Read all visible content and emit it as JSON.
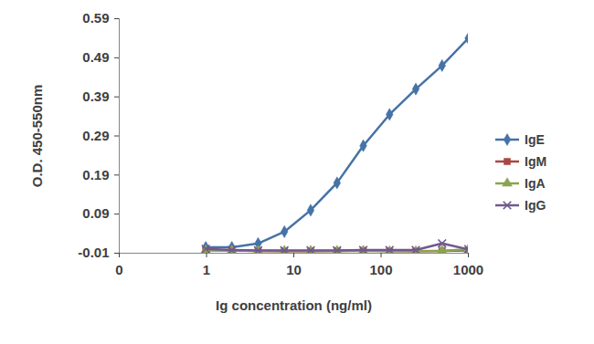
{
  "chart_data": {
    "type": "line",
    "x_label": "Ig concentration (ng/ml)",
    "y_label": "O.D. 450-550nm",
    "x": [
      0.98,
      1.95,
      3.9,
      7.8,
      15.6,
      31.3,
      62.5,
      125,
      250,
      500,
      1000
    ],
    "series": [
      {
        "name": "IgE",
        "color": "#4572a7",
        "marker": "diamond",
        "values": [
          0.005,
          0.005,
          0.015,
          0.045,
          0.1,
          0.17,
          0.265,
          0.345,
          0.41,
          0.47,
          0.54
        ]
      },
      {
        "name": "IgM",
        "color": "#aa4643",
        "marker": "square",
        "values": [
          -0.002,
          -0.003,
          -0.004,
          -0.005,
          -0.005,
          -0.004,
          -0.003,
          -0.004,
          -0.005,
          -0.004,
          -0.003
        ]
      },
      {
        "name": "IgA",
        "color": "#89a54e",
        "marker": "triangle",
        "values": [
          -0.003,
          -0.003,
          -0.004,
          -0.004,
          -0.004,
          -0.004,
          -0.004,
          -0.005,
          -0.005,
          -0.004,
          0.0
        ]
      },
      {
        "name": "IgG",
        "color": "#71588f",
        "marker": "x",
        "values": [
          0.001,
          -0.002,
          -0.003,
          -0.003,
          -0.003,
          -0.003,
          -0.002,
          -0.002,
          -0.002,
          0.015,
          0.0
        ]
      }
    ],
    "log": "x",
    "xlim": [
      0.1,
      1000
    ],
    "xticks": [
      {
        "value": 0.1,
        "label": "0"
      },
      1,
      10,
      100,
      1000
    ],
    "ylim": [
      -0.01,
      0.59
    ],
    "yticks": [
      -0.01,
      0.09,
      0.19,
      0.29,
      0.39,
      0.49,
      0.59
    ],
    "grid": false,
    "legend": "right"
  }
}
